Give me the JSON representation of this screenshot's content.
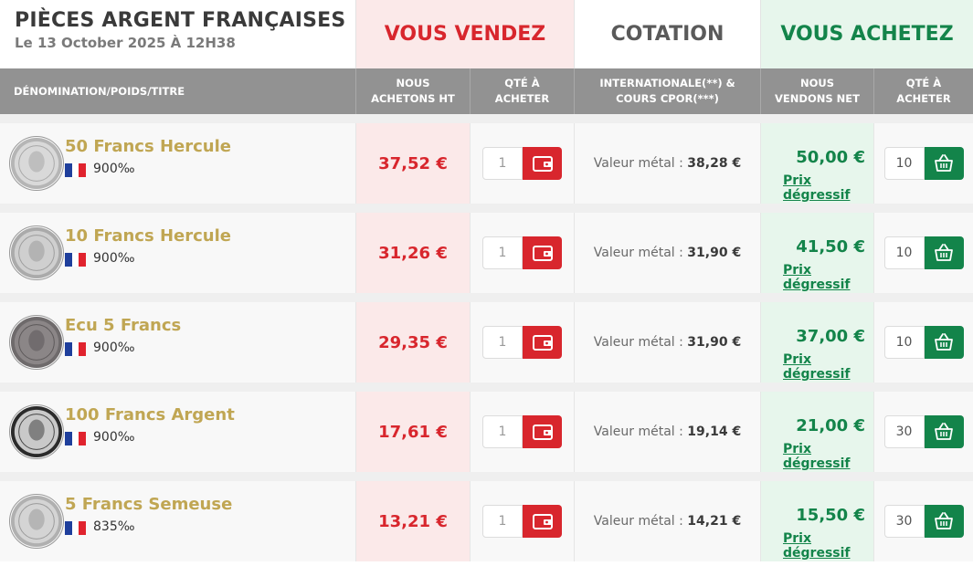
{
  "header": {
    "title": "PIÈCES ARGENT FRANÇAISES",
    "date": "Le 13 October 2025 À 12H38",
    "sell_title": "VOUS VENDEZ",
    "quote_title": "COTATION",
    "buy_title": "VOUS ACHETEZ"
  },
  "columns": {
    "denomination": "DÉNOMINATION/POIDS/TITRE",
    "we_buy_1": "NOUS",
    "we_buy_2": "ACHETONS HT",
    "qty_sell_1": "QTÉ À",
    "qty_sell_2": "ACHETER",
    "international_1": "INTERNATIONALE(**) &",
    "international_2": "COURS CPOR(***)",
    "we_sell_1": "NOUS",
    "we_sell_2": "VENDONS NET",
    "qty_buy_1": "QTÉ À",
    "qty_buy_2": "ACHETER"
  },
  "labels": {
    "metal_value": "Valeur métal : ",
    "degressive": "Prix dégressif"
  },
  "colors": {
    "sell_red": "#d8262d",
    "buy_green": "#13844a",
    "gold_name": "#c0a653",
    "flag_blue": "#1f3f9c",
    "flag_red": "#e0232e"
  },
  "icons": {
    "sell_button": "wallet-icon",
    "buy_button": "basket-icon",
    "origin": "france-flag-icon"
  },
  "products": [
    {
      "name": "50 Francs Hercule",
      "purity": "900‰",
      "sell_price": "37,52 €",
      "sell_qty": "1",
      "metal_value": "38,28 €",
      "buy_price": "50,00 €",
      "buy_qty": "10"
    },
    {
      "name": "10 Francs Hercule",
      "purity": "900‰",
      "sell_price": "31,26 €",
      "sell_qty": "1",
      "metal_value": "31,90 €",
      "buy_price": "41,50 €",
      "buy_qty": "10"
    },
    {
      "name": "Ecu 5 Francs",
      "purity": "900‰",
      "sell_price": "29,35 €",
      "sell_qty": "1",
      "metal_value": "31,90 €",
      "buy_price": "37,00 €",
      "buy_qty": "10"
    },
    {
      "name": "100 Francs Argent",
      "purity": "900‰",
      "sell_price": "17,61 €",
      "sell_qty": "1",
      "metal_value": "19,14 €",
      "buy_price": "21,00 €",
      "buy_qty": "30"
    },
    {
      "name": "5 Francs Semeuse",
      "purity": "835‰",
      "sell_price": "13,21 €",
      "sell_qty": "1",
      "metal_value": "14,21 €",
      "buy_price": "15,50 €",
      "buy_qty": "30"
    }
  ]
}
